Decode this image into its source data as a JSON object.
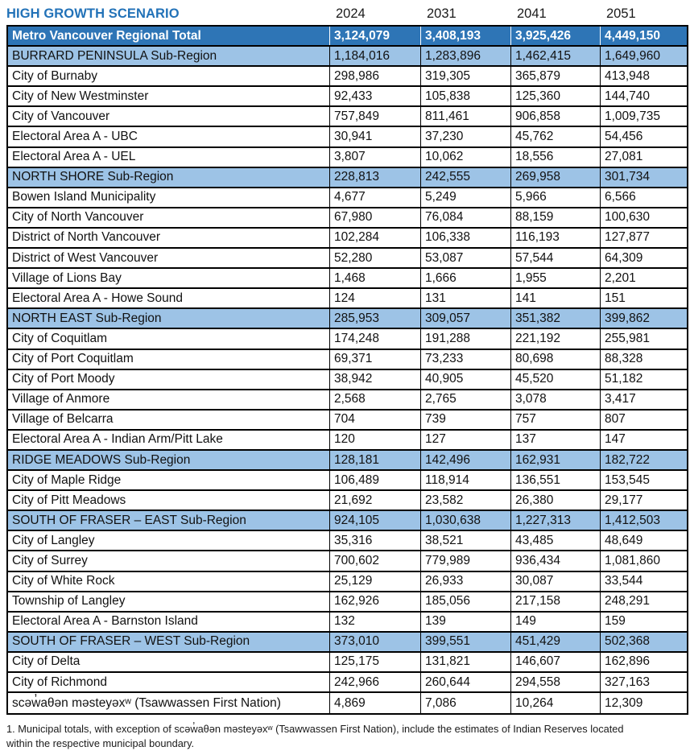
{
  "title": "HIGH GROWTH SCENARIO",
  "years": [
    "2024",
    "2031",
    "2041",
    "2051"
  ],
  "colors": {
    "title_text": "#2272B8",
    "total_row_bg": "#2E75B6",
    "subregion_row_bg": "#9DC3E6",
    "border": "#000000"
  },
  "rows": [
    {
      "type": "total",
      "name": "Metro Vancouver Regional Total",
      "values": [
        "3,124,079",
        "3,408,193",
        "3,925,426",
        "4,449,150"
      ]
    },
    {
      "type": "subregion",
      "name": "BURRARD PENINSULA Sub-Region",
      "values": [
        "1,184,016",
        "1,283,896",
        "1,462,415",
        "1,649,960"
      ]
    },
    {
      "type": "muni",
      "name": "City of Burnaby",
      "values": [
        "298,986",
        "319,305",
        "365,879",
        "413,948"
      ]
    },
    {
      "type": "muni",
      "name": "City of New Westminster",
      "values": [
        "92,433",
        "105,838",
        "125,360",
        "144,740"
      ]
    },
    {
      "type": "muni",
      "name": "City of Vancouver",
      "values": [
        "757,849",
        "811,461",
        "906,858",
        "1,009,735"
      ]
    },
    {
      "type": "muni",
      "name": "Electoral Area A - UBC",
      "values": [
        "30,941",
        "37,230",
        "45,762",
        "54,456"
      ]
    },
    {
      "type": "muni",
      "name": "Electoral Area A - UEL",
      "values": [
        "3,807",
        "10,062",
        "18,556",
        "27,081"
      ]
    },
    {
      "type": "subregion",
      "name": "NORTH SHORE Sub-Region",
      "values": [
        "228,813",
        "242,555",
        "269,958",
        "301,734"
      ]
    },
    {
      "type": "muni",
      "name": "Bowen Island Municipality",
      "values": [
        "4,677",
        "5,249",
        "5,966",
        "6,566"
      ]
    },
    {
      "type": "muni",
      "name": "City of North Vancouver",
      "values": [
        "67,980",
        "76,084",
        "88,159",
        "100,630"
      ]
    },
    {
      "type": "muni",
      "name": "District of North Vancouver",
      "values": [
        "102,284",
        "106,338",
        "116,193",
        "127,877"
      ]
    },
    {
      "type": "muni",
      "name": "District of West Vancouver",
      "values": [
        "52,280",
        "53,087",
        "57,544",
        "64,309"
      ]
    },
    {
      "type": "muni",
      "name": "Village of Lions Bay",
      "values": [
        "1,468",
        "1,666",
        "1,955",
        "2,201"
      ]
    },
    {
      "type": "muni",
      "name": "Electoral Area A - Howe Sound",
      "values": [
        "124",
        "131",
        "141",
        "151"
      ]
    },
    {
      "type": "subregion",
      "name": "NORTH EAST Sub-Region",
      "values": [
        "285,953",
        "309,057",
        "351,382",
        "399,862"
      ]
    },
    {
      "type": "muni",
      "name": "City of Coquitlam",
      "values": [
        "174,248",
        "191,288",
        "221,192",
        "255,981"
      ]
    },
    {
      "type": "muni",
      "name": "City of Port Coquitlam",
      "values": [
        "69,371",
        "73,233",
        "80,698",
        "88,328"
      ]
    },
    {
      "type": "muni",
      "name": "City of Port Moody",
      "values": [
        "38,942",
        "40,905",
        "45,520",
        "51,182"
      ]
    },
    {
      "type": "muni",
      "name": "Village of Anmore",
      "values": [
        "2,568",
        "2,765",
        "3,078",
        "3,417"
      ]
    },
    {
      "type": "muni",
      "name": "Village of Belcarra",
      "values": [
        "704",
        "739",
        "757",
        "807"
      ]
    },
    {
      "type": "muni",
      "name": "Electoral Area A - Indian Arm/Pitt Lake",
      "values": [
        "120",
        "127",
        "137",
        "147"
      ]
    },
    {
      "type": "subregion",
      "name": "RIDGE MEADOWS Sub-Region",
      "values": [
        "128,181",
        "142,496",
        "162,931",
        "182,722"
      ]
    },
    {
      "type": "muni",
      "name": "City of Maple Ridge",
      "values": [
        "106,489",
        "118,914",
        "136,551",
        "153,545"
      ]
    },
    {
      "type": "muni",
      "name": "City of Pitt Meadows",
      "values": [
        "21,692",
        "23,582",
        "26,380",
        "29,177"
      ]
    },
    {
      "type": "subregion",
      "name": "SOUTH OF FRASER – EAST Sub-Region",
      "values": [
        "924,105",
        "1,030,638",
        "1,227,313",
        "1,412,503"
      ]
    },
    {
      "type": "muni",
      "name": "City of Langley",
      "values": [
        "35,316",
        "38,521",
        "43,485",
        "48,649"
      ]
    },
    {
      "type": "muni",
      "name": "City of Surrey",
      "values": [
        "700,602",
        "779,989",
        "936,434",
        "1,081,860"
      ]
    },
    {
      "type": "muni",
      "name": "City of White Rock",
      "values": [
        "25,129",
        "26,933",
        "30,087",
        "33,544"
      ]
    },
    {
      "type": "muni",
      "name": "Township of Langley",
      "values": [
        "162,926",
        "185,056",
        "217,158",
        "248,291"
      ]
    },
    {
      "type": "muni",
      "name": "Electoral Area A - Barnston Island",
      "values": [
        "132",
        "139",
        "149",
        "159"
      ]
    },
    {
      "type": "subregion",
      "name": "SOUTH OF FRASER – WEST Sub-Region",
      "values": [
        "373,010",
        "399,551",
        "451,429",
        "502,368"
      ]
    },
    {
      "type": "muni",
      "name": "City of Delta",
      "values": [
        "125,175",
        "131,821",
        "146,607",
        "162,896"
      ]
    },
    {
      "type": "muni",
      "name": "City of Richmond",
      "values": [
        "242,966",
        "260,644",
        "294,558",
        "327,163"
      ]
    },
    {
      "type": "muni",
      "name": "scəw̓aθən məsteyəxʷ (Tsawwassen First Nation)",
      "values": [
        "4,869",
        "7,086",
        "10,264",
        "12,309"
      ]
    }
  ],
  "footnote": "1. Municipal totals, with exception of scəw̓aθən məsteyəxʷ (Tsawwassen First Nation), include the estimates of Indian Reserves located within the respective municipal boundary."
}
